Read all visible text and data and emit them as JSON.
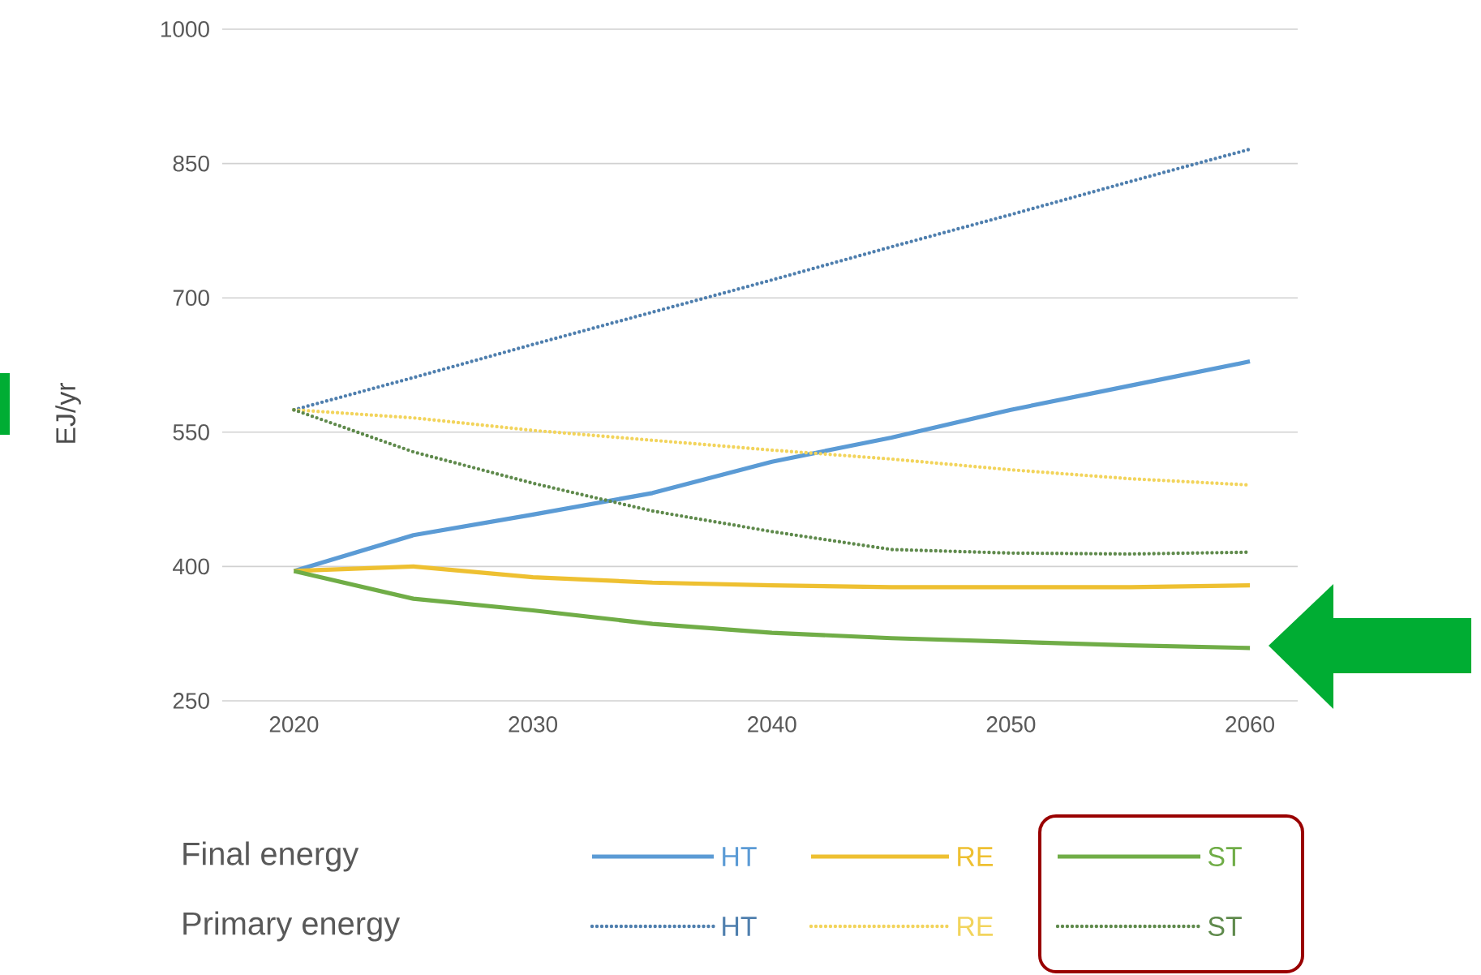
{
  "chart_data": {
    "type": "line",
    "ylabel": "EJ/yr",
    "x": [
      2020,
      2025,
      2030,
      2035,
      2040,
      2045,
      2050,
      2055,
      2060
    ],
    "series": [
      {
        "name": "HT",
        "color": "#5b9bd5",
        "line_style": "solid",
        "values": [
          395,
          435,
          458,
          482,
          517,
          544,
          575,
          602,
          629
        ]
      },
      {
        "name": "RE",
        "color": "#eec031",
        "line_style": "solid",
        "values": [
          395,
          400,
          388,
          382,
          379,
          377,
          377,
          377,
          379
        ]
      },
      {
        "name": "ST",
        "color": "#70ad47",
        "line_style": "solid",
        "values": [
          395,
          364,
          351,
          336,
          326,
          320,
          316,
          312,
          309
        ]
      },
      {
        "name": "HT",
        "color": "#4f7fae",
        "line_style": "dotted",
        "values": [
          575,
          611,
          648,
          684,
          720,
          757,
          793,
          830,
          866
        ]
      },
      {
        "name": "RE",
        "color": "#f2d45c",
        "line_style": "dotted",
        "values": [
          575,
          566,
          552,
          541,
          530,
          520,
          508,
          498,
          491
        ]
      },
      {
        "name": "ST",
        "color": "#5f8a4c",
        "line_style": "dotted",
        "values": [
          575,
          528,
          493,
          462,
          439,
          419,
          415,
          414,
          416
        ]
      }
    ],
    "annotations": [
      "Final energy",
      "Primary energy"
    ],
    "xlim": [
      2017,
      2062
    ],
    "ylim": [
      250,
      1000
    ],
    "xticks": [
      2020,
      2030,
      2040,
      2050,
      2060
    ],
    "yticks": [
      250,
      400,
      550,
      700,
      850,
      1000
    ],
    "grid": "y",
    "legend": "bottom"
  }
}
